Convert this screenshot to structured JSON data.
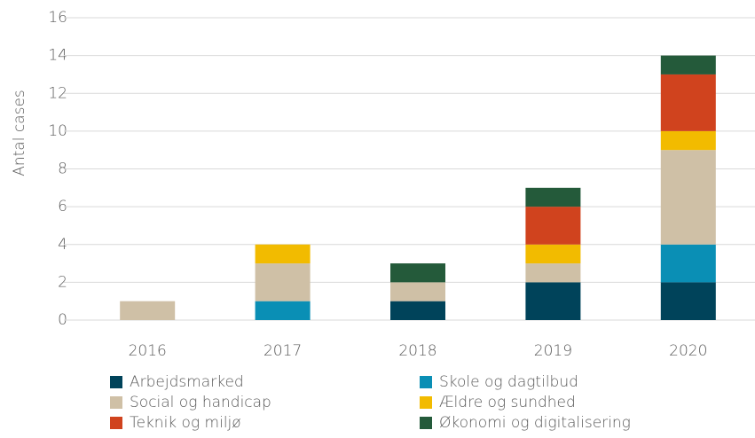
{
  "chart_data": {
    "type": "stacked_bar",
    "y_label": "Antal cases",
    "categories": [
      "2016",
      "2017",
      "2018",
      "2019",
      "2020"
    ],
    "series": [
      {
        "name": "Arbejdsmarked",
        "color": "#00435a",
        "values": [
          0,
          0,
          1,
          2,
          2
        ]
      },
      {
        "name": "Skole og dagtilbud",
        "color": "#0a8fb5",
        "values": [
          0,
          1,
          0,
          0,
          2
        ]
      },
      {
        "name": "Social og handicap",
        "color": "#cfc0a6",
        "values": [
          1,
          2,
          1,
          1,
          5
        ]
      },
      {
        "name": "Ældre og sundhed",
        "color": "#f2bb00",
        "values": [
          0,
          1,
          0,
          1,
          1
        ]
      },
      {
        "name": "Teknik og miljø",
        "color": "#d0431e",
        "values": [
          0,
          0,
          0,
          2,
          3
        ]
      },
      {
        "name": "Økonomi og digitalisering",
        "color": "#245a3a",
        "values": [
          0,
          0,
          1,
          1,
          1
        ]
      }
    ],
    "ylim": [
      0,
      16
    ],
    "yticks": [
      0,
      2,
      4,
      6,
      8,
      10,
      12,
      14,
      16
    ],
    "grid": true
  }
}
